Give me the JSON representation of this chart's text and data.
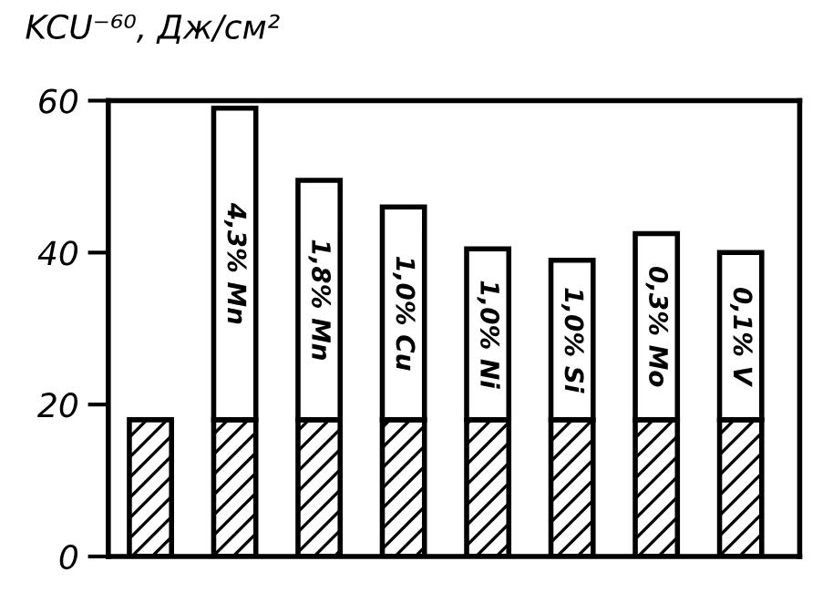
{
  "chart_data": {
    "type": "bar",
    "ylabel": "KCU⁻⁶⁰, Дж/см²",
    "categories": [
      null,
      "4,3% Mn",
      "1,8% Mn",
      "1,0% Cu",
      "1,0% Ni",
      "1,0% Si",
      "0,3% Mo",
      "0,1% V"
    ],
    "stacked": true,
    "series": [
      {
        "color": "#000000",
        "values": [
          18,
          18,
          18,
          18,
          18,
          18,
          18,
          18
        ]
      },
      {
        "color": "#ffffff",
        "values": [
          null,
          41,
          31.5,
          28,
          22.5,
          21,
          24.5,
          22
        ]
      }
    ],
    "ylim": [
      0,
      60
    ],
    "yticks": [
      0,
      20,
      40,
      60
    ],
    "grid": false
  }
}
